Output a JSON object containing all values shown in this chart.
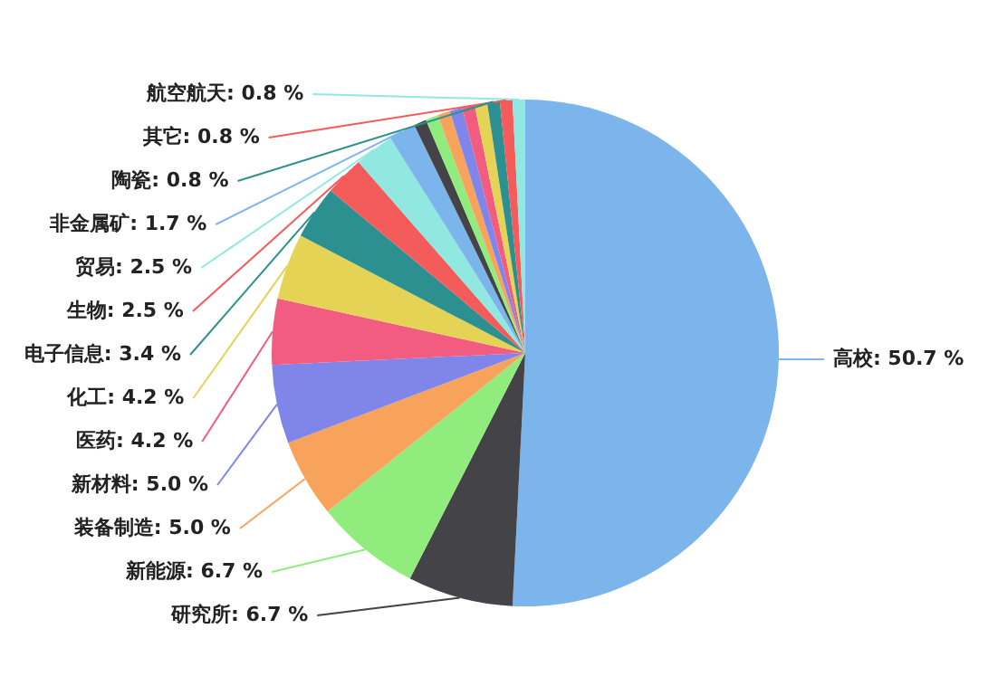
{
  "chart_data": {
    "type": "pie",
    "categories": [
      "高校",
      "研究所",
      "新能源",
      "装备制造",
      "新材料",
      "医药",
      "化工",
      "电子信息",
      "生物",
      "贸易",
      "非金属矿",
      null,
      null,
      null,
      null,
      null,
      null,
      "陶瓷",
      "其它",
      "航空航天"
    ],
    "values": [
      50.7,
      6.7,
      6.7,
      5.0,
      5.0,
      4.2,
      4.2,
      3.4,
      2.5,
      2.5,
      1.7,
      0.8,
      0.8,
      0.8,
      0.8,
      0.8,
      0.8,
      0.8,
      0.8,
      0.8
    ],
    "value_labels": [
      "50.7 %",
      "6.7 %",
      "6.7 %",
      "5.0 %",
      "5.0 %",
      "4.2 %",
      "4.2 %",
      "3.4 %",
      "2.5 %",
      "2.5 %",
      "1.7 %",
      null,
      null,
      null,
      null,
      null,
      null,
      "0.8 %",
      "0.8 %",
      "0.8 %"
    ],
    "colors": [
      "#7cb5ec",
      "#434348",
      "#90ed7d",
      "#f7a35c",
      "#8085e9",
      "#f15c80",
      "#e4d354",
      "#2b908f",
      "#f45b5b",
      "#91e8e1",
      "#7cb5ec",
      "#434348",
      "#90ed7d",
      "#f7a35c",
      "#8085e9",
      "#f15c80",
      "#e4d354",
      "#2b908f",
      "#f45b5b",
      "#91e8e1"
    ]
  }
}
